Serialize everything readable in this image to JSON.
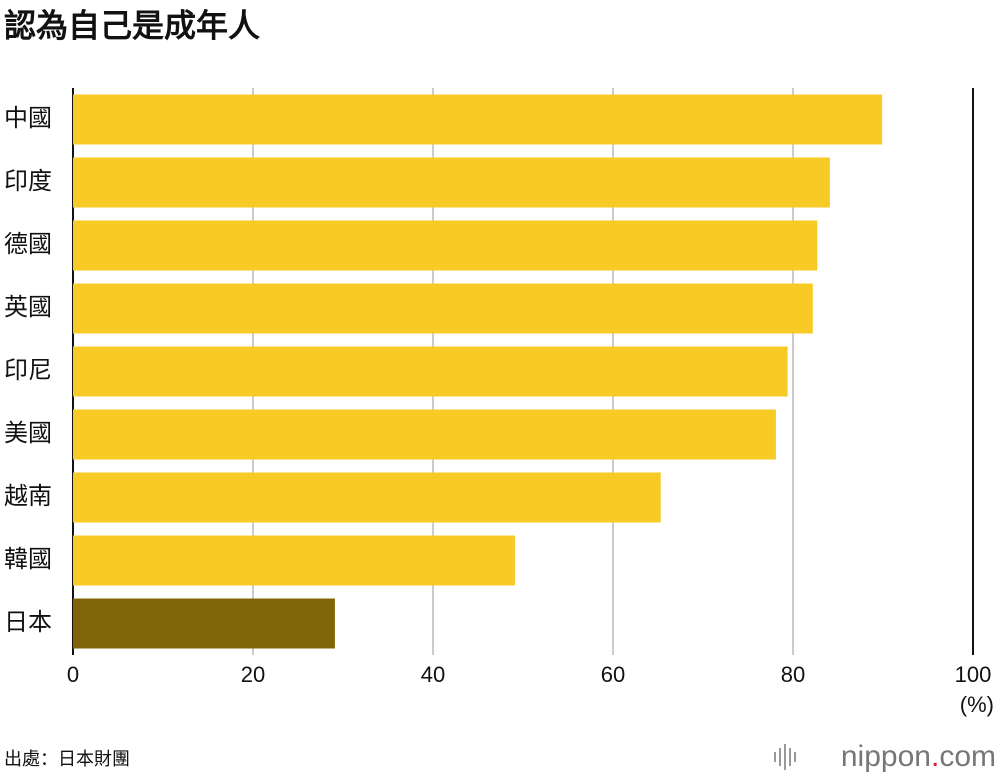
{
  "chart_data": {
    "type": "bar",
    "orientation": "horizontal",
    "title": "認為自己是成年人",
    "categories": [
      "中國",
      "印度",
      "德國",
      "英國",
      "印尼",
      "美國",
      "越南",
      "韓國",
      "日本"
    ],
    "values": [
      89.9,
      84.1,
      82.7,
      82.2,
      79.4,
      78.1,
      65.3,
      49.1,
      29.1
    ],
    "colors": [
      "#f7ca26",
      "#f7ca26",
      "#f7ca26",
      "#f7ca26",
      "#f7ca26",
      "#f7ca26",
      "#f7ca26",
      "#f7ca26",
      "#806508"
    ],
    "xlim": [
      0,
      100
    ],
    "xticks": [
      0,
      20,
      40,
      60,
      80,
      100
    ],
    "grid": true,
    "unit_label": "(%)",
    "source": "出處：日本財團",
    "brand": [
      "nippon",
      ".",
      "com"
    ]
  }
}
